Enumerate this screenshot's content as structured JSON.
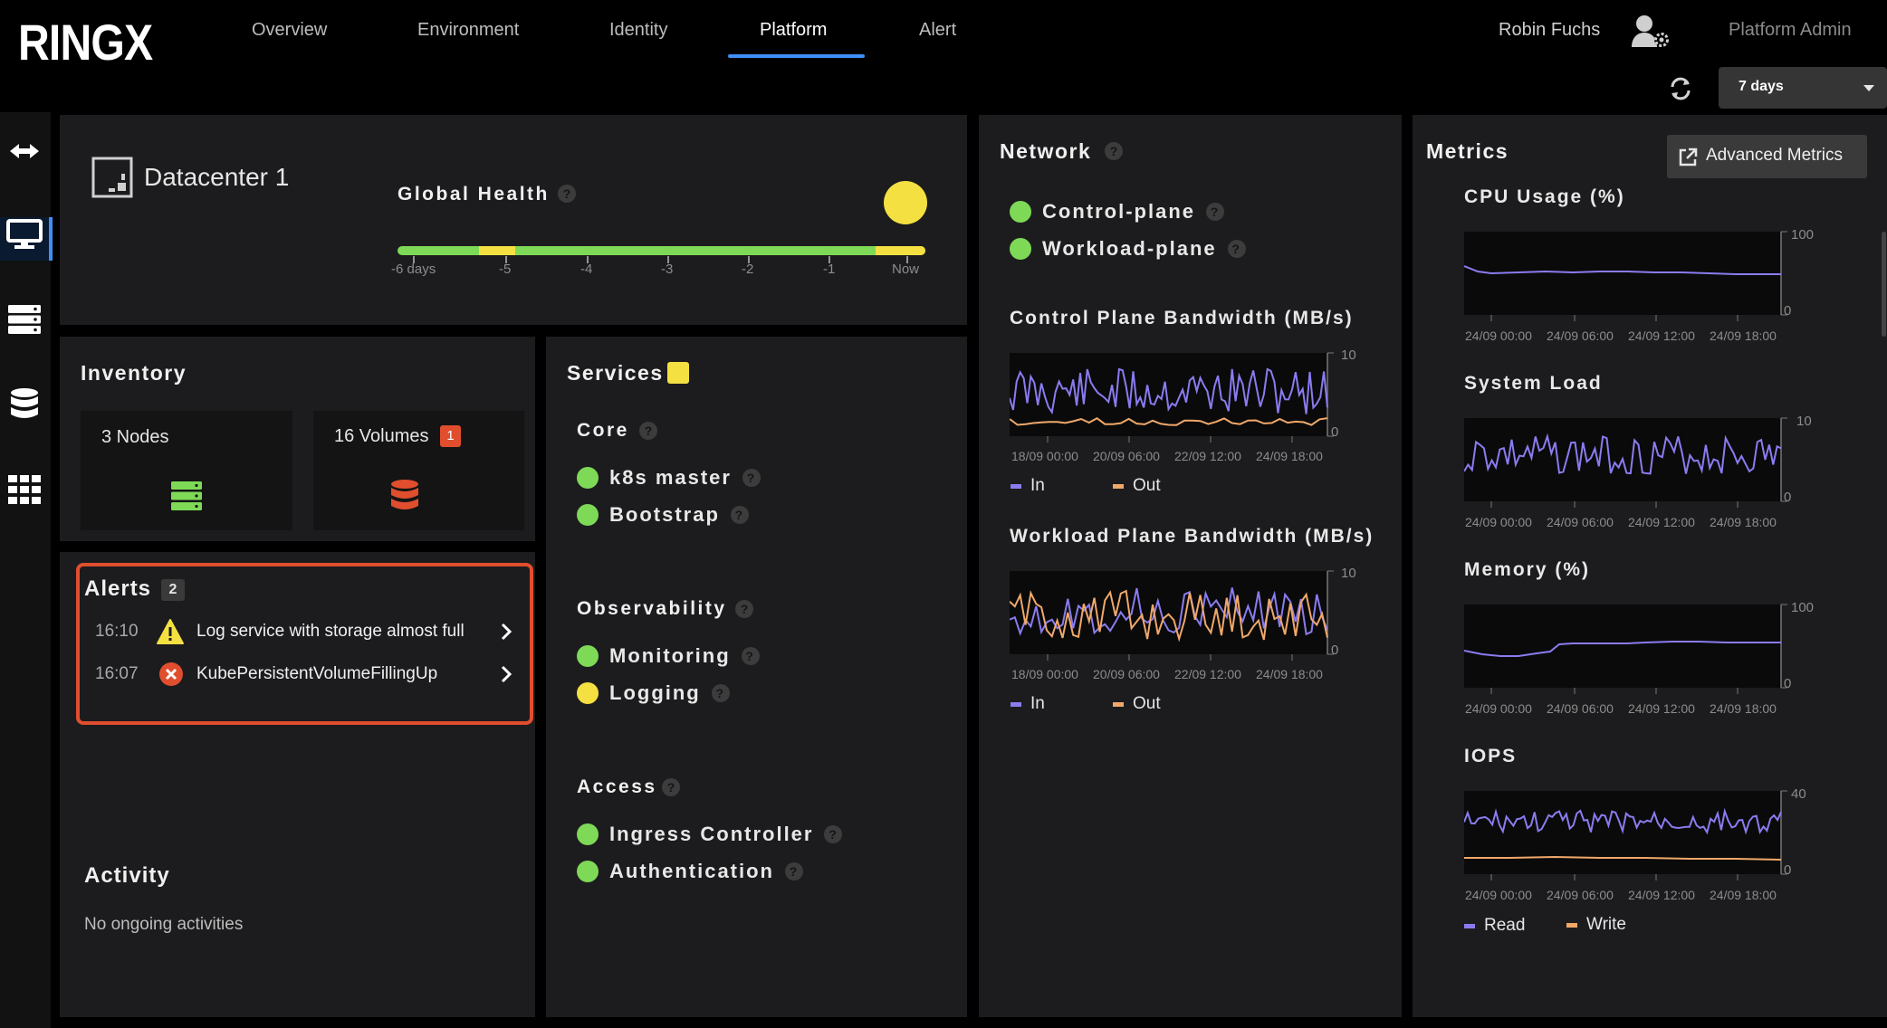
{
  "app": {
    "logo": "RINGX"
  },
  "nav": {
    "tabs": [
      "Overview",
      "Environment",
      "Identity",
      "Platform",
      "Alert"
    ],
    "active": "Platform",
    "user": "Robin Fuchs",
    "role": "Platform Admin"
  },
  "timeRange": {
    "value": "7 days"
  },
  "datacenter": {
    "name": "Datacenter 1",
    "globalHealthLabel": "Global Health",
    "ticks": [
      "-6 days",
      "-5",
      "-4",
      "-3",
      "-2",
      "-1",
      "Now"
    ],
    "colors": {
      "ok": "#7ed957",
      "warn": "#f5e042"
    }
  },
  "inventory": {
    "title": "Inventory",
    "nodes": "3 Nodes",
    "volumes": "16 Volumes",
    "volumesBadge": "1"
  },
  "alerts": {
    "title": "Alerts",
    "count": "2",
    "items": [
      {
        "time": "16:10",
        "text": "Log service with storage almost full",
        "severity": "warning"
      },
      {
        "time": "16:07",
        "text": "KubePersistentVolumeFillingUp",
        "severity": "critical"
      }
    ]
  },
  "activity": {
    "title": "Activity",
    "empty": "No ongoing activities"
  },
  "services": {
    "title": "Services",
    "groups": [
      {
        "name": "Core",
        "items": [
          {
            "name": "k8s master",
            "status": "green"
          },
          {
            "name": "Bootstrap",
            "status": "green"
          }
        ]
      },
      {
        "name": "Observability",
        "items": [
          {
            "name": "Monitoring",
            "status": "green"
          },
          {
            "name": "Logging",
            "status": "yellow"
          }
        ]
      },
      {
        "name": "Access",
        "items": [
          {
            "name": "Ingress Controller",
            "status": "green"
          },
          {
            "name": "Authentication",
            "status": "green"
          }
        ]
      }
    ]
  },
  "network": {
    "title": "Network",
    "planes": [
      {
        "name": "Control-plane",
        "status": "green"
      },
      {
        "name": "Workload-plane",
        "status": "green"
      }
    ],
    "charts": [
      {
        "title": "Control Plane Bandwidth (MB/s)",
        "yMax": "10",
        "yMin": "0",
        "xTicks": [
          "18/09 00:00",
          "20/09 06:00",
          "22/09 12:00",
          "24/09 18:00"
        ],
        "legend": [
          "In",
          "Out"
        ]
      },
      {
        "title": "Workload Plane Bandwidth (MB/s)",
        "yMax": "10",
        "yMin": "0",
        "xTicks": [
          "18/09 00:00",
          "20/09 06:00",
          "22/09 12:00",
          "24/09 18:00"
        ],
        "legend": [
          "In",
          "Out"
        ]
      }
    ]
  },
  "metrics": {
    "title": "Metrics",
    "advanced": "Advanced Metrics",
    "charts": [
      {
        "title": "CPU Usage (%)",
        "yMax": "100",
        "yMin": "0",
        "xTicks": [
          "24/09 00:00",
          "24/09 06:00",
          "24/09 12:00",
          "24/09 18:00"
        ]
      },
      {
        "title": "System Load",
        "yMax": "10",
        "yMin": "0",
        "xTicks": [
          "24/09 00:00",
          "24/09 06:00",
          "24/09 12:00",
          "24/09 18:00"
        ]
      },
      {
        "title": "Memory (%)",
        "yMax": "100",
        "yMin": "0",
        "xTicks": [
          "24/09 00:00",
          "24/09 06:00",
          "24/09 12:00",
          "24/09 18:00"
        ]
      },
      {
        "title": "IOPS",
        "yMax": "40",
        "yMin": "0",
        "xTicks": [
          "24/09 00:00",
          "24/09 06:00",
          "24/09 12:00",
          "24/09 18:00"
        ],
        "legend": [
          "Read",
          "Write"
        ]
      }
    ]
  },
  "colors": {
    "accent": "#3f8ef5",
    "green": "#7ed957",
    "yellow": "#f5e042",
    "red": "#e04e2e",
    "in": "#8a7cf0",
    "out": "#f0a86a"
  }
}
